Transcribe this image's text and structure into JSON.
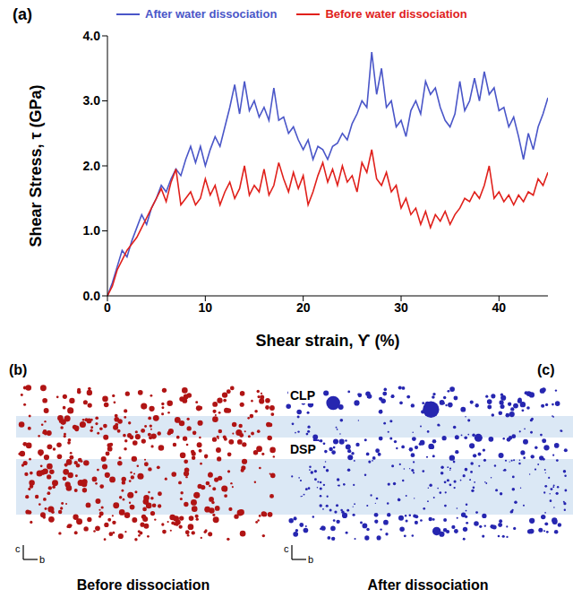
{
  "chart_data": {
    "type": "line",
    "panel": "(a)",
    "x_label": "Shear strain, ϒ (%)",
    "y_label": "Shear Stress, τ (GPa)",
    "x": [
      0,
      0.5,
      1,
      1.5,
      2,
      2.5,
      3,
      3.5,
      4,
      4.5,
      5,
      5.5,
      6,
      6.5,
      7,
      7.5,
      8,
      8.5,
      9,
      9.5,
      10,
      10.5,
      11,
      11.5,
      12,
      12.5,
      13,
      13.5,
      14,
      14.5,
      15,
      15.5,
      16,
      16.5,
      17,
      17.5,
      18,
      18.5,
      19,
      19.5,
      20,
      20.5,
      21,
      21.5,
      22,
      22.5,
      23,
      23.5,
      24,
      24.5,
      25,
      25.5,
      26,
      26.5,
      27,
      27.5,
      28,
      28.5,
      29,
      29.5,
      30,
      30.5,
      31,
      31.5,
      32,
      32.5,
      33,
      33.5,
      34,
      34.5,
      35,
      35.5,
      36,
      36.5,
      37,
      37.5,
      38,
      38.5,
      39,
      39.5,
      40,
      40.5,
      41,
      41.5,
      42,
      42.5,
      43,
      43.5,
      44,
      44.5,
      45
    ],
    "series": [
      {
        "name": "After water dissociation",
        "color": "#4a56c8",
        "values": [
          0,
          0.2,
          0.45,
          0.7,
          0.6,
          0.85,
          1.05,
          1.25,
          1.1,
          1.35,
          1.5,
          1.7,
          1.6,
          1.8,
          1.95,
          1.85,
          2.1,
          2.3,
          2.05,
          2.3,
          2.0,
          2.25,
          2.45,
          2.3,
          2.6,
          2.9,
          3.25,
          2.8,
          3.3,
          2.85,
          3.0,
          2.75,
          2.9,
          2.7,
          3.2,
          2.7,
          2.75,
          2.5,
          2.6,
          2.4,
          2.25,
          2.4,
          2.1,
          2.3,
          2.25,
          2.1,
          2.3,
          2.35,
          2.5,
          2.4,
          2.65,
          2.8,
          3.0,
          2.9,
          3.75,
          3.1,
          3.5,
          2.9,
          3.0,
          2.6,
          2.7,
          2.45,
          2.85,
          3.0,
          2.8,
          3.3,
          3.1,
          3.2,
          2.9,
          2.7,
          2.6,
          2.8,
          3.3,
          2.85,
          3.0,
          3.35,
          3.0,
          3.45,
          3.1,
          3.2,
          2.85,
          2.9,
          2.6,
          2.75,
          2.45,
          2.1,
          2.5,
          2.25,
          2.6,
          2.8,
          3.05
        ]
      },
      {
        "name": "Before water dissociation",
        "color": "#e0201b",
        "values": [
          0,
          0.15,
          0.4,
          0.55,
          0.7,
          0.8,
          0.9,
          1.05,
          1.2,
          1.35,
          1.5,
          1.65,
          1.45,
          1.75,
          1.95,
          1.4,
          1.5,
          1.6,
          1.4,
          1.5,
          1.8,
          1.55,
          1.7,
          1.4,
          1.6,
          1.75,
          1.5,
          1.65,
          2.0,
          1.55,
          1.7,
          1.6,
          1.95,
          1.55,
          1.7,
          2.05,
          1.8,
          1.6,
          1.9,
          1.65,
          1.85,
          1.4,
          1.6,
          1.85,
          2.05,
          1.75,
          1.95,
          1.7,
          2.0,
          1.75,
          1.85,
          1.6,
          2.05,
          1.9,
          2.25,
          1.8,
          1.7,
          1.9,
          1.6,
          1.7,
          1.35,
          1.5,
          1.25,
          1.35,
          1.1,
          1.3,
          1.05,
          1.25,
          1.15,
          1.3,
          1.1,
          1.25,
          1.35,
          1.5,
          1.45,
          1.6,
          1.5,
          1.7,
          2.0,
          1.5,
          1.6,
          1.45,
          1.55,
          1.4,
          1.55,
          1.45,
          1.6,
          1.55,
          1.8,
          1.7,
          1.9
        ]
      }
    ],
    "xlim": [
      0,
      45
    ],
    "xticks": [
      0,
      10,
      20,
      30,
      40
    ],
    "ylim": [
      0,
      4
    ],
    "yticks": [
      {
        "value": 0,
        "label": "0.0"
      },
      {
        "value": 1,
        "label": "1.0"
      },
      {
        "value": 2,
        "label": "2.0"
      },
      {
        "value": 3,
        "label": "3.0"
      },
      {
        "value": 4,
        "label": "4.0"
      }
    ],
    "grid": false,
    "legend": "top"
  },
  "figure": {
    "panel_b": {
      "label": "(b)",
      "caption": "Before dissociation",
      "axes": [
        "c",
        "b"
      ]
    },
    "panel_c": {
      "label": "(c)",
      "caption": "After dissociation",
      "axes": [
        "c",
        "b"
      ],
      "annotations": [
        "CLP",
        "DSP"
      ]
    }
  }
}
